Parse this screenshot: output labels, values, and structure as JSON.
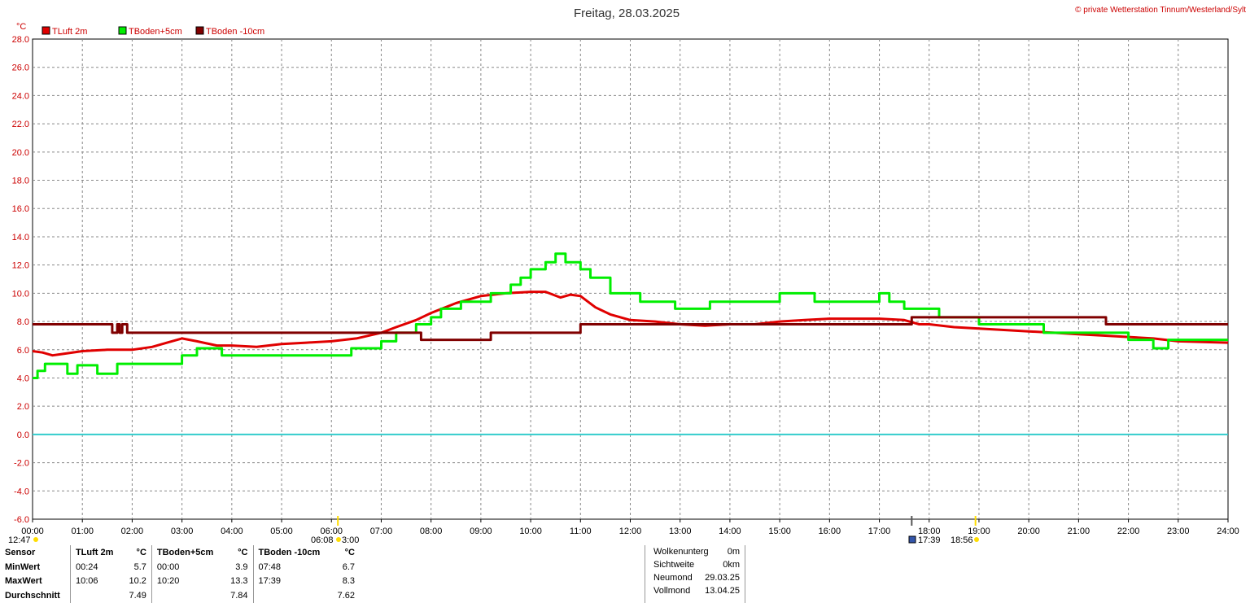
{
  "header": {
    "title": "Freitag, 28.03.2025",
    "copyright": "© private Wetterstation Tinnum/Westerland/Sylt",
    "unit": "°C"
  },
  "legend": [
    {
      "label": "TLuft 2m",
      "color": "#e00000"
    },
    {
      "label": "TBoden+5cm",
      "color": "#00ee00"
    },
    {
      "label": "TBoden -10cm",
      "color": "#800000"
    }
  ],
  "chart_data": {
    "type": "line",
    "x_unit": "hours",
    "ylim": [
      -6,
      28
    ],
    "xlim": [
      0,
      24
    ],
    "y_ticks": [
      "28.0",
      "26.0",
      "24.0",
      "22.0",
      "20.0",
      "18.0",
      "16.0",
      "14.0",
      "12.0",
      "10.0",
      "8.0",
      "6.0",
      "4.0",
      "2.0",
      "0.0",
      "-2.0",
      "-4.0",
      "-6.0"
    ],
    "y_tick_values": [
      28,
      26,
      24,
      22,
      20,
      18,
      16,
      14,
      12,
      10,
      8,
      6,
      4,
      2,
      0,
      -2,
      -4,
      -6
    ],
    "x_ticks": [
      "00:00",
      "01:00",
      "02:00",
      "03:00",
      "04:00",
      "05:00",
      "06:00",
      "07:00",
      "08:00",
      "09:00",
      "10:00",
      "11:00",
      "12:00",
      "13:00",
      "14:00",
      "15:00",
      "16:00",
      "17:00",
      "18:00",
      "19:00",
      "20:00",
      "21:00",
      "22:00",
      "23:00",
      "24:00"
    ],
    "grid": true,
    "zero_line_color": "#33cccc",
    "series": [
      {
        "name": "TLuft 2m",
        "color": "#e00000",
        "step": false,
        "x": [
          0,
          0.2,
          0.4,
          0.6,
          1,
          1.5,
          2,
          2.4,
          2.7,
          3,
          3.3,
          3.7,
          4,
          4.5,
          5,
          5.5,
          6,
          6.5,
          7,
          7.3,
          7.7,
          8,
          8.5,
          9,
          9.5,
          10,
          10.3,
          10.6,
          10.8,
          11,
          11.3,
          11.6,
          12,
          12.5,
          13,
          13.5,
          14,
          14.5,
          15,
          15.5,
          16,
          16.5,
          17,
          17.5,
          17.8,
          18,
          18.5,
          19,
          19.5,
          20,
          20.5,
          21,
          21.5,
          22,
          22.5,
          23,
          24
        ],
        "y": [
          5.9,
          5.8,
          5.6,
          5.7,
          5.9,
          6,
          6,
          6.2,
          6.5,
          6.8,
          6.6,
          6.3,
          6.3,
          6.2,
          6.4,
          6.5,
          6.6,
          6.8,
          7.2,
          7.6,
          8.1,
          8.6,
          9.3,
          9.8,
          10,
          10.1,
          10.1,
          9.7,
          9.9,
          9.8,
          9,
          8.5,
          8.1,
          8,
          7.8,
          7.7,
          7.8,
          7.8,
          8,
          8.1,
          8.2,
          8.2,
          8.2,
          8.1,
          7.8,
          7.8,
          7.6,
          7.5,
          7.4,
          7.3,
          7.2,
          7.1,
          7,
          6.9,
          6.8,
          6.6,
          6.5
        ]
      },
      {
        "name": "TBoden+5cm",
        "color": "#00ee00",
        "step": true,
        "x": [
          0,
          0.1,
          0.25,
          0.7,
          0.9,
          1.3,
          1.7,
          2,
          2.6,
          3.0,
          3.3,
          3.8,
          4.0,
          4.6,
          6.2,
          6.4,
          7.0,
          7.3,
          7.7,
          8.0,
          8.2,
          8.6,
          9.2,
          9.6,
          9.8,
          10.0,
          10.3,
          10.5,
          10.7,
          11.0,
          11.2,
          11.6,
          12.2,
          12.6,
          12.9,
          13.2,
          13.6,
          14.1,
          14.6,
          15,
          15.7,
          16.0,
          16.5,
          17.0,
          17.2,
          17.5,
          17.8,
          18.2,
          19.0,
          19.3,
          20.0,
          20.3,
          21.0,
          21.3,
          21.7,
          22.0,
          22.5,
          22.8,
          24.0
        ],
        "y": [
          4.0,
          4.5,
          5.0,
          4.3,
          4.9,
          4.3,
          5.0,
          5.0,
          5.0,
          5.6,
          6.1,
          5.6,
          5.6,
          5.6,
          5.6,
          6.1,
          6.6,
          7.2,
          7.8,
          8.3,
          8.9,
          9.4,
          10.0,
          10.6,
          11.1,
          11.7,
          12.2,
          12.8,
          12.2,
          11.7,
          11.1,
          10.0,
          9.4,
          9.4,
          8.9,
          8.9,
          9.4,
          9.4,
          9.4,
          10.0,
          9.4,
          9.4,
          9.4,
          10.0,
          9.4,
          8.9,
          8.9,
          8.3,
          7.8,
          7.8,
          7.8,
          7.2,
          7.2,
          7.2,
          7.2,
          6.7,
          6.1,
          6.7,
          6.7
        ]
      },
      {
        "name": "TBoden -10cm",
        "color": "#800000",
        "step": true,
        "x": [
          0,
          1.5,
          1.6,
          1.7,
          1.75,
          1.8,
          1.9,
          2.0,
          4.0,
          6.0,
          7.8,
          9.2,
          11.0,
          13.0,
          15.0,
          17.0,
          17.65,
          18.0,
          20.0,
          21.55,
          22.0,
          24.0
        ],
        "y": [
          7.8,
          7.8,
          7.2,
          7.8,
          7.2,
          7.8,
          7.2,
          7.2,
          7.2,
          7.2,
          6.7,
          7.2,
          7.8,
          7.8,
          7.8,
          7.8,
          8.3,
          8.3,
          8.3,
          7.8,
          7.8,
          7.8
        ]
      }
    ]
  },
  "sun_markers": {
    "left": "12:47",
    "rise": "06:08",
    "rise2": "3:00",
    "moon_rise": "17:39",
    "set": "18:56"
  },
  "stats": {
    "headers": [
      "Sensor",
      "TLuft 2m",
      "°C",
      "TBoden+5cm",
      "°C",
      "TBoden -10cm",
      "°C"
    ],
    "rows": [
      {
        "label": "MinWert",
        "t1": "00:24",
        "v1": "5.7",
        "t2": "00:00",
        "v2": "3.9",
        "t3": "07:48",
        "v3": "6.7"
      },
      {
        "label": "MaxWert",
        "t1": "10:06",
        "v1": "10.2",
        "t2": "10:20",
        "v2": "13.3",
        "t3": "17:39",
        "v3": "8.3"
      },
      {
        "label": "Durchschnitt",
        "t1": "",
        "v1": "7.49",
        "t2": "",
        "v2": "7.84",
        "t3": "",
        "v3": "7.62"
      }
    ]
  },
  "extra": [
    {
      "label": "Wolkenunterg",
      "value": "0m"
    },
    {
      "label": "Sichtweite",
      "value": "0km"
    },
    {
      "label": "Neumond",
      "value": "29.03.25"
    },
    {
      "label": "Vollmond",
      "value": "13.04.25"
    }
  ]
}
